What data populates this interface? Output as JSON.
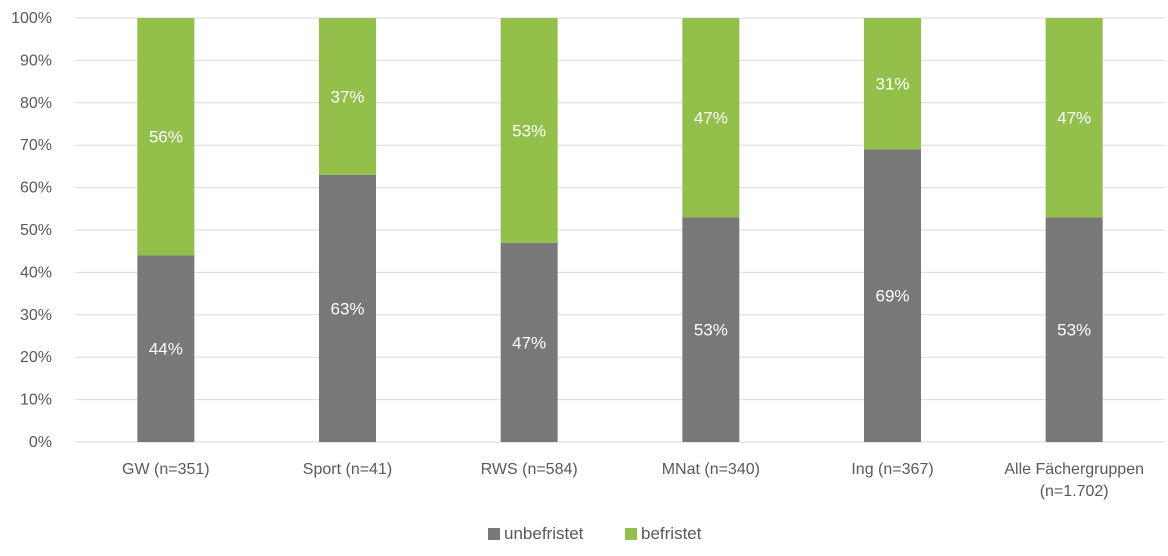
{
  "chart_data": {
    "type": "bar",
    "stacked": true,
    "percent_stacked": true,
    "categories": [
      [
        "GW (n=351)"
      ],
      [
        "Sport (n=41)"
      ],
      [
        "RWS (n=584)"
      ],
      [
        "MNat (n=340)"
      ],
      [
        "Ing (n=367)"
      ],
      [
        "Alle Fächergruppen",
        "(n=1.702)"
      ]
    ],
    "series": [
      {
        "name": "unbefristet",
        "color": "#787878",
        "values": [
          44,
          63,
          47,
          53,
          69,
          53
        ]
      },
      {
        "name": "befristet",
        "color": "#92c04b",
        "values": [
          56,
          37,
          53,
          47,
          31,
          47
        ]
      }
    ],
    "value_suffix": "%",
    "ylim": [
      0,
      100
    ],
    "yticks": [
      0,
      10,
      20,
      30,
      40,
      50,
      60,
      70,
      80,
      90,
      100
    ],
    "ytick_suffix": "%",
    "grid": true,
    "legend": "bottom"
  }
}
